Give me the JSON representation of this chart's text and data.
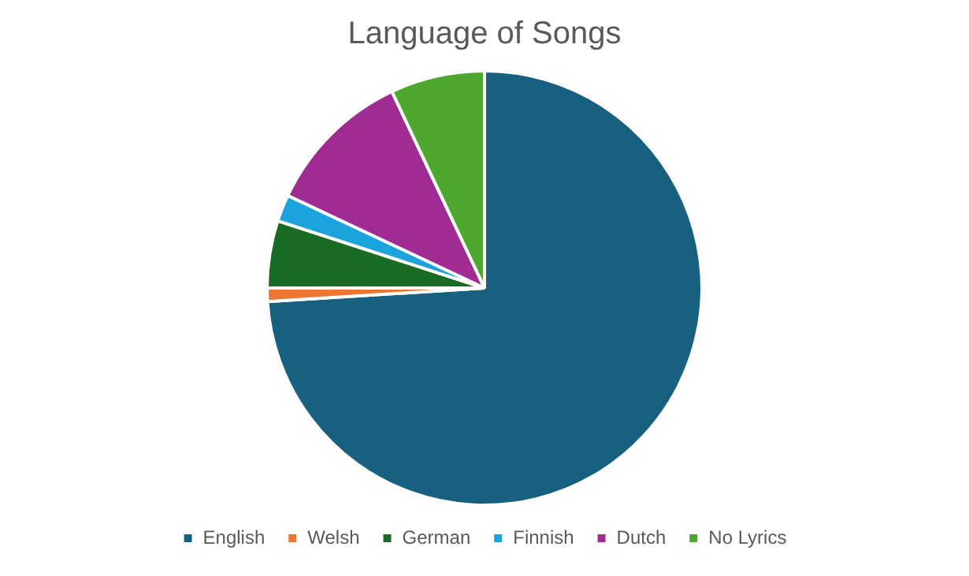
{
  "chart_data": {
    "type": "pie",
    "title": "Language of Songs",
    "categories": [
      "English",
      "Welsh",
      "German",
      "Finnish",
      "Dutch",
      "No Lyrics"
    ],
    "values": [
      74,
      1,
      5,
      2,
      11,
      7
    ],
    "colors": [
      "#17607f",
      "#ee7531",
      "#1a6b24",
      "#1ba3dd",
      "#a02b93",
      "#4ea72e"
    ],
    "legend": "bottom"
  }
}
